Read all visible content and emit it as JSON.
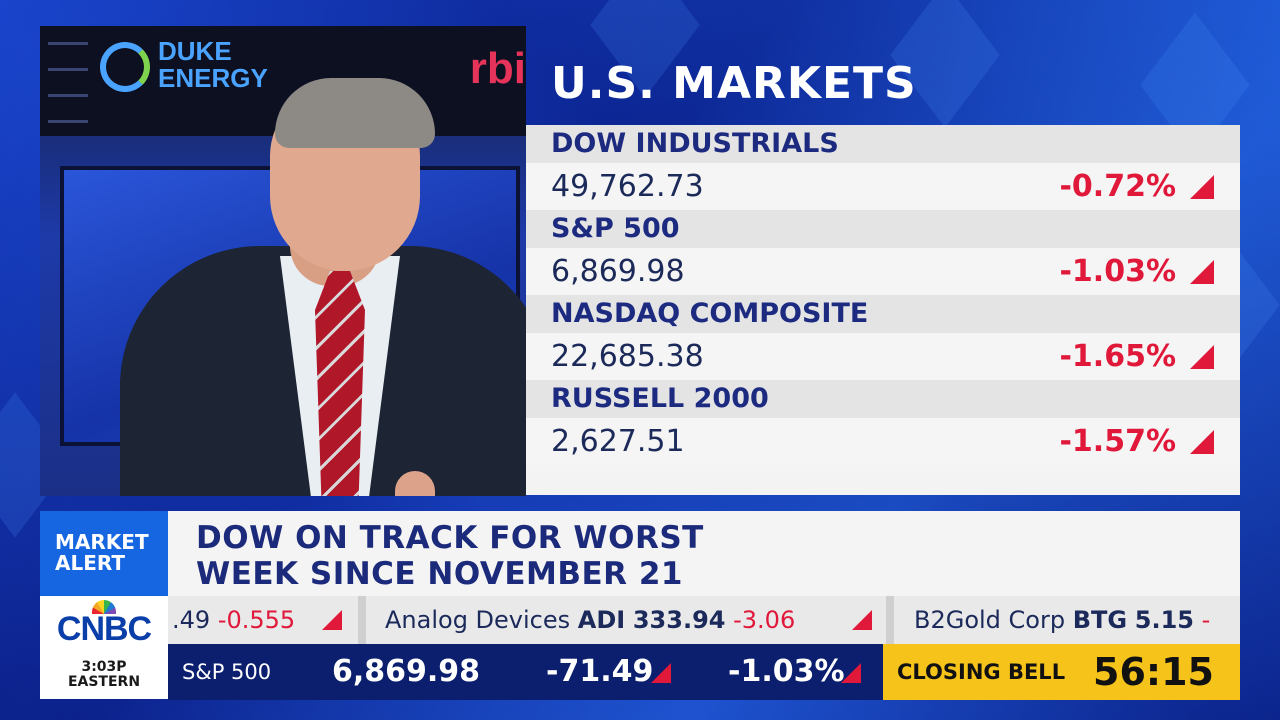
{
  "markets": {
    "title": "U.S. MARKETS",
    "rows": [
      {
        "name": "DOW INDUSTRIALS",
        "price": "49,762.73",
        "change": "-0.72%"
      },
      {
        "name": "S&P 500",
        "price": "6,869.98",
        "change": "-1.03%"
      },
      {
        "name": "NASDAQ COMPOSITE",
        "price": "22,685.38",
        "change": "-1.65%"
      },
      {
        "name": "RUSSELL 2000",
        "price": "2,627.51",
        "change": "-1.57%"
      }
    ],
    "down_color": "#e0183a"
  },
  "alert": {
    "label_line1": "MARKET",
    "label_line2": "ALERT",
    "headline_line1": "DOW ON TRACK FOR WORST",
    "headline_line2": "WEEK SINCE NOVEMBER 21"
  },
  "network": {
    "logo": "CNBC",
    "time": "3:03P",
    "timezone": "EASTERN"
  },
  "ticker": {
    "items": [
      {
        "name": "",
        "symbol": ".49",
        "value": "",
        "change": "-0.555"
      },
      {
        "name": "Analog Devices",
        "symbol": "ADI",
        "value": "333.94",
        "change": "-3.06"
      },
      {
        "name": "B2Gold Corp",
        "symbol": "BTG",
        "value": "5.15",
        "change": "-"
      }
    ]
  },
  "index_bar": {
    "label": "S&P 500",
    "price": "6,869.98",
    "change": "-71.49",
    "percent": "-1.03%"
  },
  "closing_bell": {
    "label": "CLOSING BELL",
    "countdown": "56:15"
  },
  "video": {
    "logo_left_line1": "DUKE",
    "logo_left_line2": "ENERGY",
    "logo_right": "rbi"
  },
  "colors": {
    "brand_blue": "#1566e0",
    "navy": "#0b1f6e",
    "closing_yellow": "#f5c31a"
  }
}
